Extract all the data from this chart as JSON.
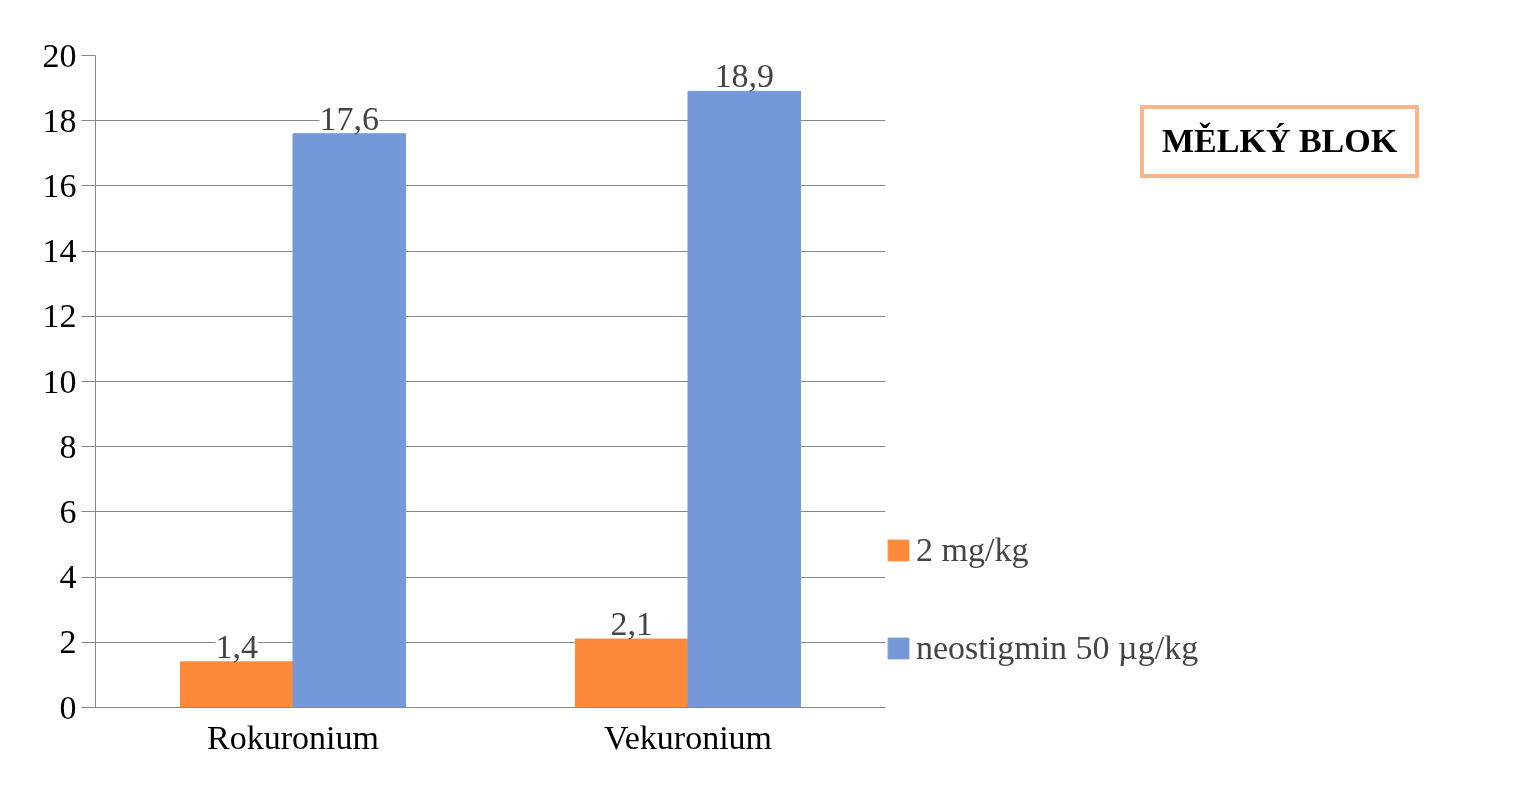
{
  "chart_data": {
    "type": "bar",
    "categories": [
      "Rokuronium",
      "Vekuronium"
    ],
    "series": [
      {
        "name": "2 mg/kg",
        "color": "#fd8a3a",
        "values": [
          1.4,
          2.1
        ],
        "value_labels": [
          "1,4",
          "2,1"
        ]
      },
      {
        "name": "neostigmin 50 µg/kg",
        "color": "#7599d8",
        "values": [
          17.6,
          18.9
        ],
        "value_labels": [
          "17,6",
          "18,9"
        ]
      }
    ],
    "ylim": [
      0,
      20
    ],
    "yticks": [
      0,
      2,
      4,
      6,
      8,
      10,
      12,
      14,
      16,
      18,
      20
    ],
    "grid": "y",
    "data_labels": true,
    "legend": "right",
    "annotations": [
      "MĚLKÝ BLOK"
    ]
  }
}
